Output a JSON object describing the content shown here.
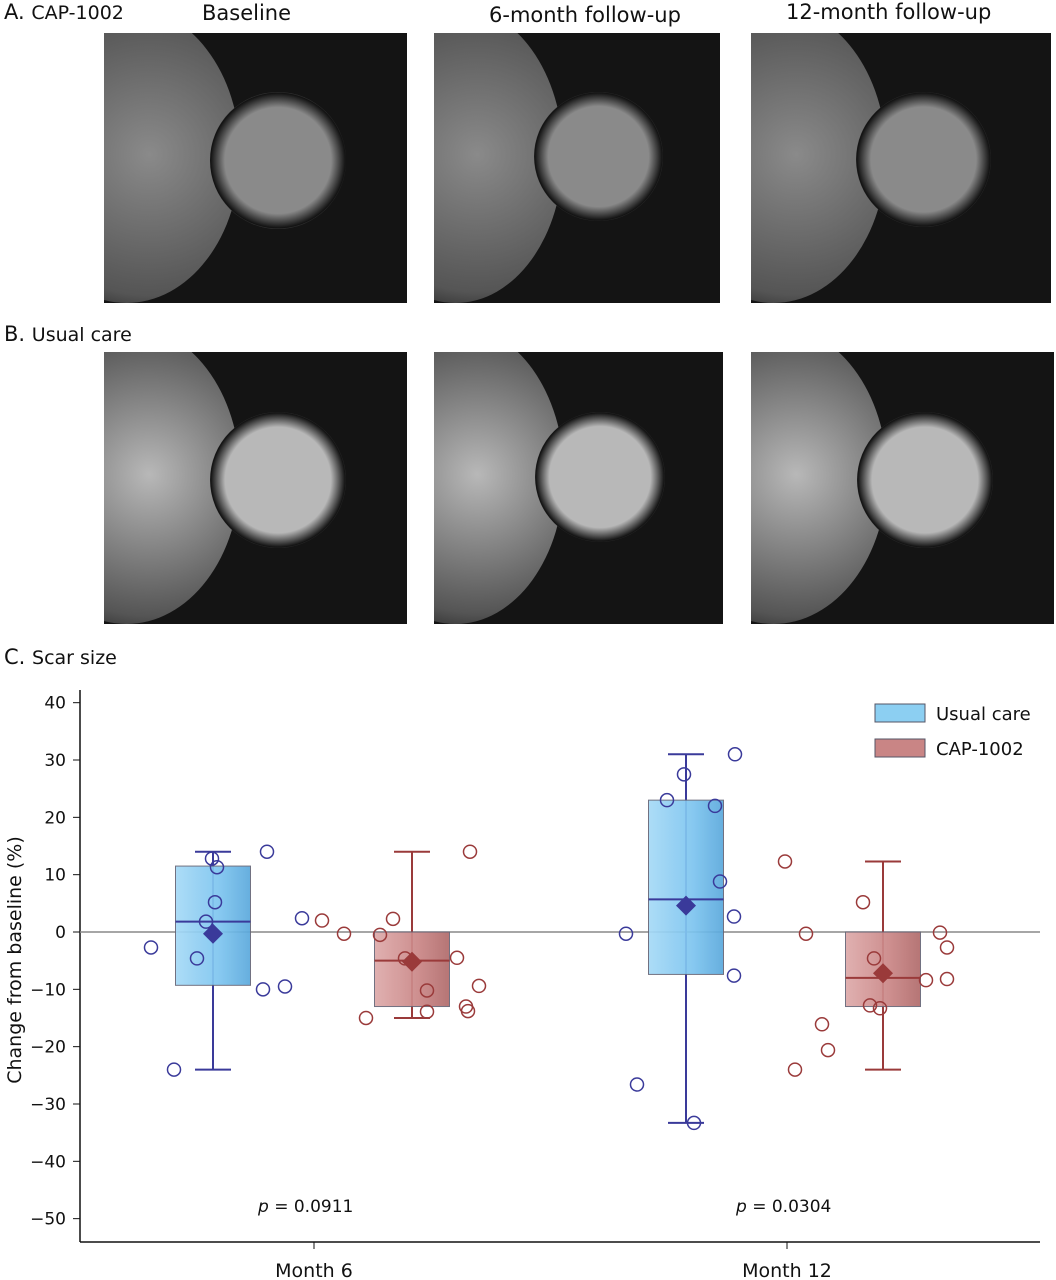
{
  "panel_a": {
    "label": "A.",
    "group": "CAP-1002"
  },
  "panel_b": {
    "label": "B.",
    "group": "Usual care"
  },
  "panel_c": {
    "label": "C.",
    "title": "Scar size"
  },
  "columns": [
    "Baseline",
    "6-month follow-up",
    "12-month follow-up"
  ],
  "chart_data": {
    "type": "box",
    "title": "Scar size",
    "xlabel": "",
    "ylabel": "Change from baseline (%)",
    "ylim": [
      -50,
      40
    ],
    "yticks": [
      40,
      30,
      20,
      10,
      0,
      -10,
      -20,
      -30,
      -40,
      -50
    ],
    "ytick_labels": [
      "40",
      "30",
      "20",
      "10",
      "0",
      "−10",
      "−20",
      "−30",
      "−40",
      "−50"
    ],
    "categories": [
      "Month 6",
      "Month 12"
    ],
    "legend": {
      "position": "top-right",
      "entries": [
        "Usual care",
        "CAP-1002"
      ]
    },
    "colors": {
      "Usual care": "#7cc4ef",
      "Usual care_line": "#3a3a9a",
      "CAP-1002": "#c98585",
      "CAP-1002_line": "#9a3a3a",
      "reference": "#888888"
    },
    "series": [
      {
        "name": "Usual care",
        "boxes": [
          {
            "category": "Month 6",
            "q1": -9.3,
            "median": 1.8,
            "q3": 11.5,
            "whisker_low": -24,
            "whisker_high": 14,
            "mean": -0.3,
            "points": [
              -2.7,
              -24,
              12.8,
              11.3,
              5.2,
              1.8,
              -4.6,
              -10,
              -9.5,
              14,
              2.4
            ]
          },
          {
            "category": "Month 12",
            "q1": -7.4,
            "median": 5.7,
            "q3": 23,
            "whisker_low": -33.3,
            "whisker_high": 31,
            "mean": 4.6,
            "points": [
              -0.3,
              -26.6,
              23,
              27.5,
              22,
              8.8,
              2.7,
              -7.6,
              31,
              -33.3
            ]
          }
        ]
      },
      {
        "name": "CAP-1002",
        "boxes": [
          {
            "category": "Month 6",
            "q1": -13,
            "median": -5,
            "q3": 0,
            "whisker_low": -15,
            "whisker_high": 14,
            "mean": -5.2,
            "points": [
              2,
              -0.3,
              -15,
              -0.5,
              2.3,
              -4.6,
              -10.2,
              -13.9,
              -4.5,
              -13,
              -13.8,
              -9.4,
              14
            ]
          },
          {
            "category": "Month 12",
            "q1": -13,
            "median": -8,
            "q3": 0,
            "whisker_low": -24,
            "whisker_high": 12.3,
            "mean": -7.2,
            "points": [
              12.3,
              -0.3,
              -24,
              -16.1,
              -20.6,
              5.2,
              -4.6,
              -12.8,
              -13.3,
              -8.4,
              -0.1,
              -2.7,
              -8.2
            ]
          }
        ]
      }
    ],
    "annotations": [
      {
        "category": "Month 6",
        "p_label": "p",
        "p_value": "= 0.0911"
      },
      {
        "category": "Month 12",
        "p_label": "p",
        "p_value": "= 0.0304"
      }
    ]
  }
}
